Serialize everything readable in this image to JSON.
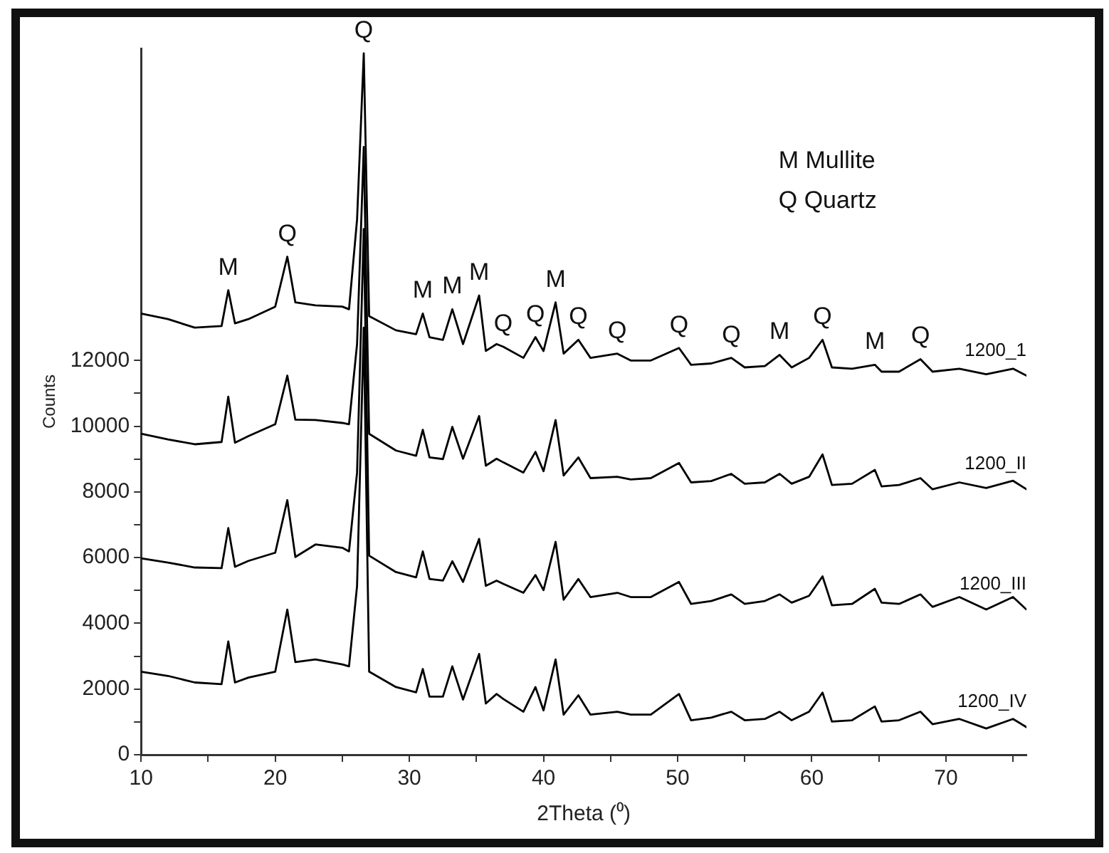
{
  "chart_data": {
    "type": "line",
    "xlabel": "2Theta (⁰)",
    "ylabel": "Counts",
    "x": [
      10,
      12,
      14,
      16,
      16.5,
      17,
      18,
      20,
      20.9,
      21.5,
      23,
      25,
      25.5,
      26.1,
      26.6,
      27,
      29,
      30.5,
      31,
      31.5,
      32.5,
      33.2,
      34,
      35.2,
      35.7,
      36.5,
      37,
      38.5,
      39.4,
      40,
      40.9,
      41.5,
      42.6,
      43.5,
      45.5,
      46.5,
      48,
      50.1,
      51,
      52.5,
      54,
      55,
      56.5,
      57.6,
      58.5,
      59.8,
      60.8,
      61.5,
      63,
      64.7,
      65.2,
      66.5,
      68.1,
      69,
      71,
      73,
      75,
      76
    ],
    "series": [
      {
        "name": "1200_1",
        "color": "#000000",
        "values": [
          13430,
          13260,
          13000,
          13050,
          14140,
          13130,
          13260,
          13640,
          15160,
          13770,
          13680,
          13640,
          13560,
          16290,
          21350,
          13350,
          12920,
          12800,
          13430,
          12710,
          12630,
          13560,
          12500,
          13980,
          12290,
          12500,
          12420,
          12080,
          12710,
          12290,
          13770,
          12210,
          12630,
          12080,
          12210,
          12000,
          12000,
          12380,
          11870,
          11910,
          12080,
          11790,
          11830,
          12170,
          11790,
          12080,
          12630,
          11790,
          11750,
          11870,
          11660,
          11660,
          12040,
          11660,
          11750,
          11580,
          11750,
          11540
        ]
      },
      {
        "name": "1200_II",
        "color": "#000000",
        "values": [
          9770,
          9600,
          9450,
          9520,
          10900,
          9500,
          9700,
          10060,
          11540,
          10200,
          10190,
          10100,
          10060,
          12500,
          18500,
          9770,
          9260,
          9100,
          9890,
          9050,
          9000,
          9980,
          9010,
          10310,
          8800,
          9010,
          8900,
          8590,
          9220,
          8630,
          10190,
          8500,
          9050,
          8420,
          8460,
          8380,
          8420,
          8880,
          8290,
          8330,
          8550,
          8250,
          8290,
          8550,
          8250,
          8460,
          9140,
          8210,
          8250,
          8670,
          8170,
          8210,
          8420,
          8080,
          8290,
          8120,
          8340,
          8080
        ]
      },
      {
        "name": "1200_III",
        "color": "#000000",
        "values": [
          5980,
          5850,
          5700,
          5680,
          6900,
          5720,
          5900,
          6150,
          7750,
          6020,
          6400,
          6300,
          6190,
          8590,
          16000,
          6060,
          5560,
          5400,
          6190,
          5350,
          5300,
          5890,
          5260,
          6570,
          5140,
          5300,
          5200,
          4930,
          5470,
          5010,
          6480,
          4720,
          5350,
          4800,
          4930,
          4800,
          4800,
          5260,
          4590,
          4680,
          4880,
          4590,
          4680,
          4880,
          4630,
          4840,
          5430,
          4550,
          4590,
          5050,
          4630,
          4590,
          4880,
          4500,
          4800,
          4420,
          4800,
          4420
        ]
      },
      {
        "name": "1200_IV",
        "color": "#000000",
        "values": [
          2530,
          2400,
          2200,
          2150,
          3450,
          2200,
          2350,
          2530,
          4420,
          2820,
          2900,
          2750,
          2690,
          5140,
          13000,
          2530,
          2060,
          1900,
          2610,
          1770,
          1770,
          2690,
          1680,
          3070,
          1560,
          1850,
          1700,
          1310,
          2060,
          1350,
          2900,
          1220,
          1810,
          1220,
          1310,
          1220,
          1220,
          1850,
          1050,
          1130,
          1310,
          1050,
          1090,
          1310,
          1050,
          1310,
          1890,
          1010,
          1050,
          1470,
          1010,
          1050,
          1310,
          930,
          1090,
          800,
          1090,
          840
        ]
      }
    ],
    "xlim": [
      10,
      76
    ],
    "xticks": [
      10,
      {
        "value": 15,
        "label": null
      },
      20,
      {
        "value": 25,
        "label": null
      },
      30,
      {
        "value": 35,
        "label": null
      },
      40,
      {
        "value": 45,
        "label": null
      },
      50,
      {
        "value": 55,
        "label": null
      },
      60,
      {
        "value": 65,
        "label": null
      },
      70,
      {
        "value": 75,
        "label": null
      }
    ],
    "ylim": [
      0,
      21500
    ],
    "yticks": [
      0,
      {
        "value": 1000,
        "label": null
      },
      2000,
      {
        "value": 3000,
        "label": null
      },
      4000,
      {
        "value": 5000,
        "label": null
      },
      6000,
      {
        "value": 7000,
        "label": null
      },
      8000,
      {
        "value": 9000,
        "label": null
      },
      10000,
      {
        "value": 11000,
        "label": null
      },
      12000
    ],
    "grid": false,
    "legend": false,
    "marker": "none",
    "line_style": "solid",
    "annotations": [
      "M Mullite",
      "Q Quartz",
      {
        "text": "M",
        "x": 16.5,
        "y": 14140
      },
      {
        "text": "Q",
        "x": 20.9,
        "y": 15160
      },
      {
        "text": "Q",
        "x": 26.6,
        "y": 21350
      },
      {
        "text": "M",
        "x": 31,
        "y": 13430
      },
      {
        "text": "M",
        "x": 33.2,
        "y": 13560
      },
      {
        "text": "M",
        "x": 35.2,
        "y": 13980
      },
      {
        "text": "Q",
        "x": 37,
        "y": 12420
      },
      {
        "text": "Q",
        "x": 39.4,
        "y": 12710
      },
      {
        "text": "M",
        "x": 40.9,
        "y": 13770
      },
      {
        "text": "Q",
        "x": 42.6,
        "y": 12630
      },
      {
        "text": "Q",
        "x": 45.5,
        "y": 12210
      },
      {
        "text": "Q",
        "x": 50.1,
        "y": 12380
      },
      {
        "text": "Q",
        "x": 54,
        "y": 12080
      },
      {
        "text": "M",
        "x": 57.6,
        "y": 12170
      },
      {
        "text": "Q",
        "x": 60.8,
        "y": 12630
      },
      {
        "text": "M",
        "x": 64.7,
        "y": 11870
      },
      {
        "text": "Q",
        "x": 68.1,
        "y": 12040
      }
    ]
  }
}
